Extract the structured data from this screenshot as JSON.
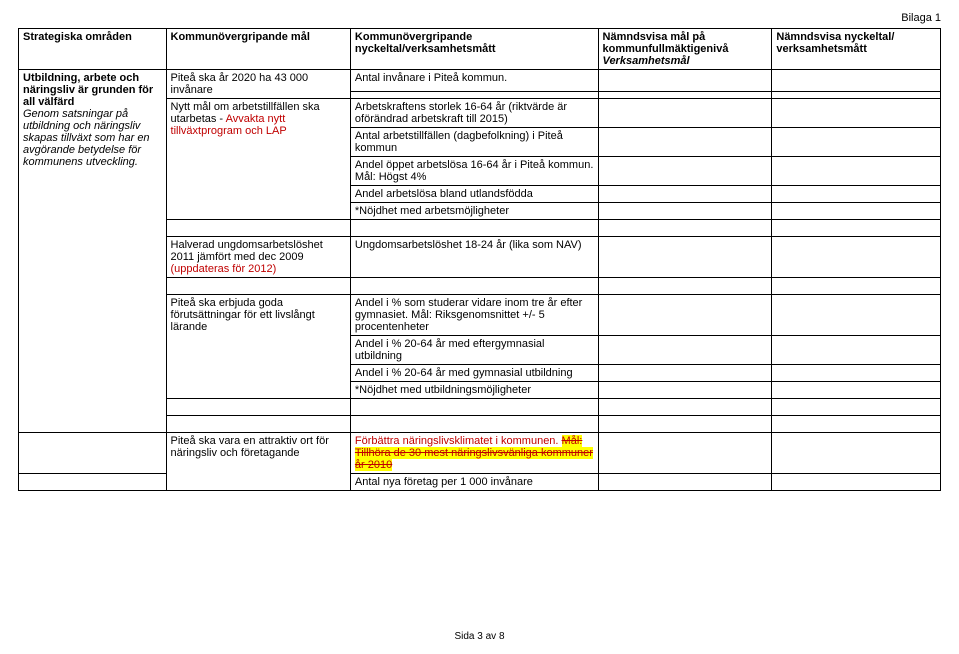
{
  "bilaga": "Bilaga 1",
  "headers": {
    "c0": "Strategiska områden",
    "c1": "Kommunövergripande mål",
    "c2": "Kommunövergripande nyckeltal/verksamhetsmått",
    "c3a": "Nämndsvisa mål på kommunfullmäktigenivå",
    "c3b": "Verksamhetsmål",
    "c4": "Nämndsvisa nyckeltal/ verksamhetsmått"
  },
  "strategic": {
    "title": "Utbildning, arbete och näringsliv är grunden för all välfärd",
    "desc": "Genom satsningar på utbildning och näringsliv skapas tillväxt som har en avgörande betydelse för kommunens utveckling."
  },
  "goals": {
    "g1": "Piteå ska år 2020 ha 43 000 invånare",
    "g2a": "Nytt mål om arbetstillfällen ska utarbetas - ",
    "g2b": "Avvakta nytt tillväxtprogram och LAP",
    "g3": "Halverad ungdomsarbetslöshet 2011 jämfört med dec 2009 ",
    "g3b": "(uppdateras för 2012)",
    "g4": "Piteå ska erbjuda goda förutsättningar för ett livslångt lärande",
    "g5": "Piteå ska vara en attraktiv ort för näringsliv och företagande"
  },
  "measures": {
    "m1": "Antal invånare i Piteå kommun.",
    "m2": "Arbetskraftens storlek 16-64 år (riktvärde är oförändrad arbetskraft till 2015)",
    "m3": "Antal arbetstillfällen (dagbefolkning) i Piteå kommun",
    "m4": "Andel öppet arbetslösa 16-64 år i Piteå kommun. Mål: Högst 4%",
    "m5": "Andel arbetslösa bland utlandsfödda",
    "m6": "*Nöjdhet med arbetsmöjligheter",
    "m7": "Ungdomsarbetslöshet 18-24 år (lika som NAV)",
    "m8": "Andel i % som studerar vidare inom tre år efter gymnasiet. Mål: Riksgenomsnittet +/- 5 procentenheter",
    "m9": "Andel i % 20-64 år med eftergymnasial utbildning",
    "m10": "Andel i % 20-64 år med gymnasial utbildning",
    "m11": "*Nöjdhet med utbildningsmöjligheter",
    "m12a": "Förbättra näringslivsklimatet i kommunen.",
    "m12b": "Mål: Tillhöra de 30 mest näringslivsvänliga kommuner år 2010",
    "m13": "Antal nya företag per 1 000 invånare"
  },
  "footer": "Sida 3 av 8"
}
